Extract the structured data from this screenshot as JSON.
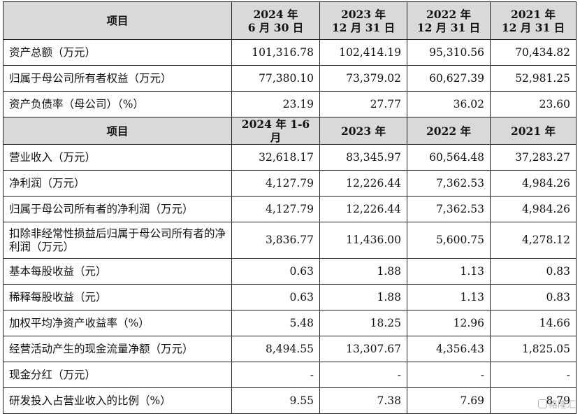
{
  "header1": {
    "item": "项目",
    "cols": [
      {
        "year": "2024 年",
        "date": "6 月 30 日"
      },
      {
        "year": "2023 年",
        "date": "12 月 31 日"
      },
      {
        "year": "2022 年",
        "date": "12 月 31 日"
      },
      {
        "year": "2021 年",
        "date": "12 月 31 日"
      }
    ]
  },
  "balance_rows": [
    {
      "label": "资产总额（万元）",
      "values": [
        "101,316.78",
        "102,414.19",
        "95,310.56",
        "70,434.82"
      ]
    },
    {
      "label": "归属于母公司所有者权益（万元）",
      "values": [
        "77,380.10",
        "73,379.02",
        "60,627.39",
        "52,981.25"
      ]
    },
    {
      "label": "资产负债率（母公司）（%）",
      "values": [
        "23.19",
        "27.77",
        "36.02",
        "23.60"
      ]
    }
  ],
  "header2": {
    "item": "项目",
    "cols": [
      "2024 年 1-6 月",
      "2023 年",
      "2022 年",
      "2021 年"
    ]
  },
  "income_rows": [
    {
      "label": "营业收入（万元）",
      "values": [
        "32,618.17",
        "83,345.97",
        "60,564.48",
        "37,283.27"
      ]
    },
    {
      "label": "净利润（万元）",
      "values": [
        "4,127.79",
        "12,226.44",
        "7,362.53",
        "4,984.26"
      ]
    },
    {
      "label": "归属于母公司所有者的净利润（万元）",
      "values": [
        "4,127.79",
        "12,226.44",
        "7,362.53",
        "4,984.26"
      ]
    },
    {
      "label": "扣除非经常性损益后归属于母公司所有者的净利润（万元）",
      "values": [
        "3,836.77",
        "11,436.00",
        "5,600.75",
        "4,278.12"
      ]
    },
    {
      "label": "基本每股收益（元）",
      "values": [
        "0.63",
        "1.88",
        "1.13",
        "0.83"
      ]
    },
    {
      "label": "稀释每股收益（元）",
      "values": [
        "0.63",
        "1.88",
        "1.13",
        "0.83"
      ]
    },
    {
      "label": "加权平均净资产收益率（%）",
      "values": [
        "5.48",
        "18.25",
        "12.96",
        "14.66"
      ]
    },
    {
      "label": "经营活动产生的现金流量净额（万元）",
      "values": [
        "8,494.55",
        "13,307.67",
        "4,356.43",
        "1,825.05"
      ]
    },
    {
      "label": "现金分红（万元）",
      "values": [
        "-",
        "-",
        "-",
        "-"
      ]
    },
    {
      "label": "研发投入占营业收入的比例（%）",
      "values": [
        "9.55",
        "7.38",
        "7.69",
        "8.79"
      ]
    }
  ],
  "watermark": {
    "text": "格隆汇",
    "icon": "gelonghui-logo-icon"
  }
}
